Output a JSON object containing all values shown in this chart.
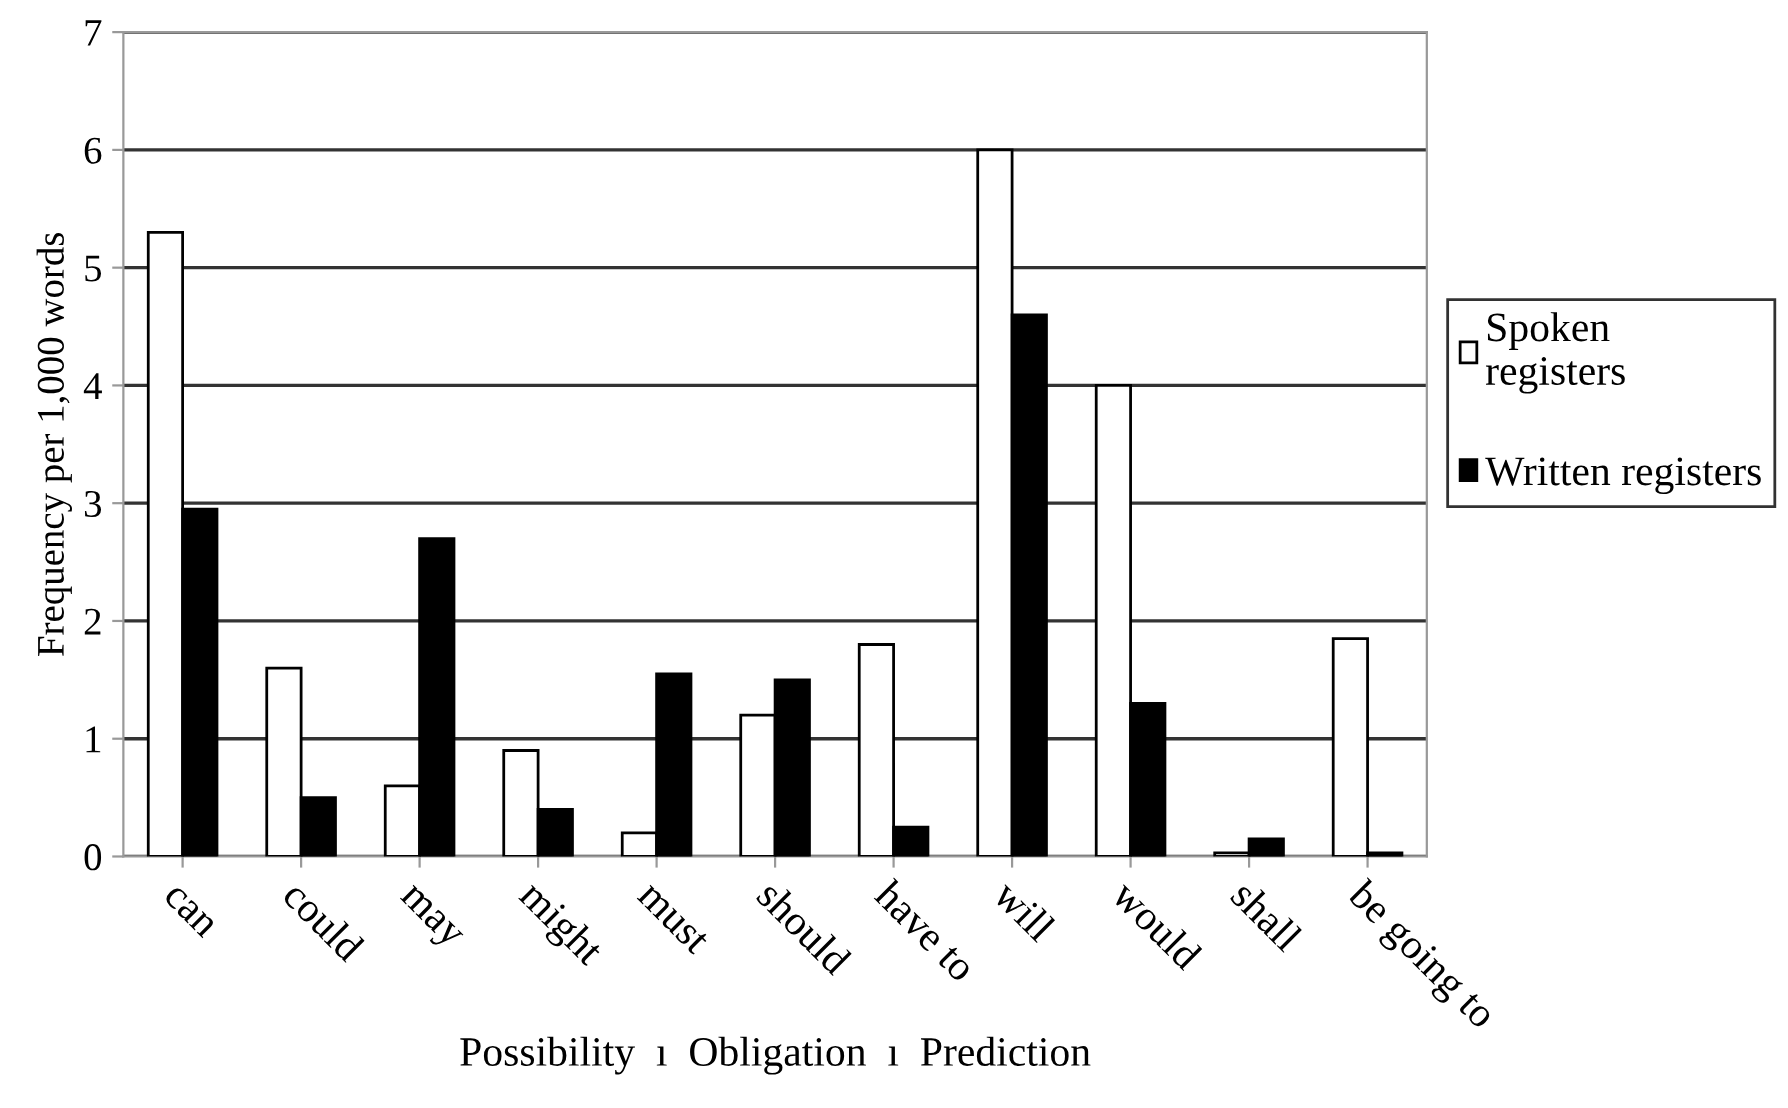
{
  "chart_data": {
    "type": "bar",
    "categories": [
      "can",
      "could",
      "may",
      "might",
      "must",
      "should",
      "have to",
      "will",
      "would",
      "shall",
      "be going to"
    ],
    "series": [
      {
        "name": "Spoken\nregisters",
        "color": "#ffffff",
        "values": [
          5.3,
          1.6,
          0.6,
          0.9,
          0.2,
          1.2,
          1.8,
          6.0,
          4.0,
          0.03,
          1.85
        ]
      },
      {
        "name": "Written registers",
        "color": "#000000",
        "values": [
          2.95,
          0.5,
          2.7,
          0.4,
          1.55,
          1.5,
          0.25,
          4.6,
          1.3,
          0.15,
          0.03
        ]
      }
    ],
    "ylabel": "Frequency per 1,000 words",
    "xlabel": "Possibility  ı  Obligation  ı  Prediction",
    "ylim": [
      0,
      7
    ],
    "yticks": [
      0,
      1,
      2,
      3,
      4,
      5,
      6,
      7
    ],
    "grid": "y",
    "legend": "right"
  }
}
